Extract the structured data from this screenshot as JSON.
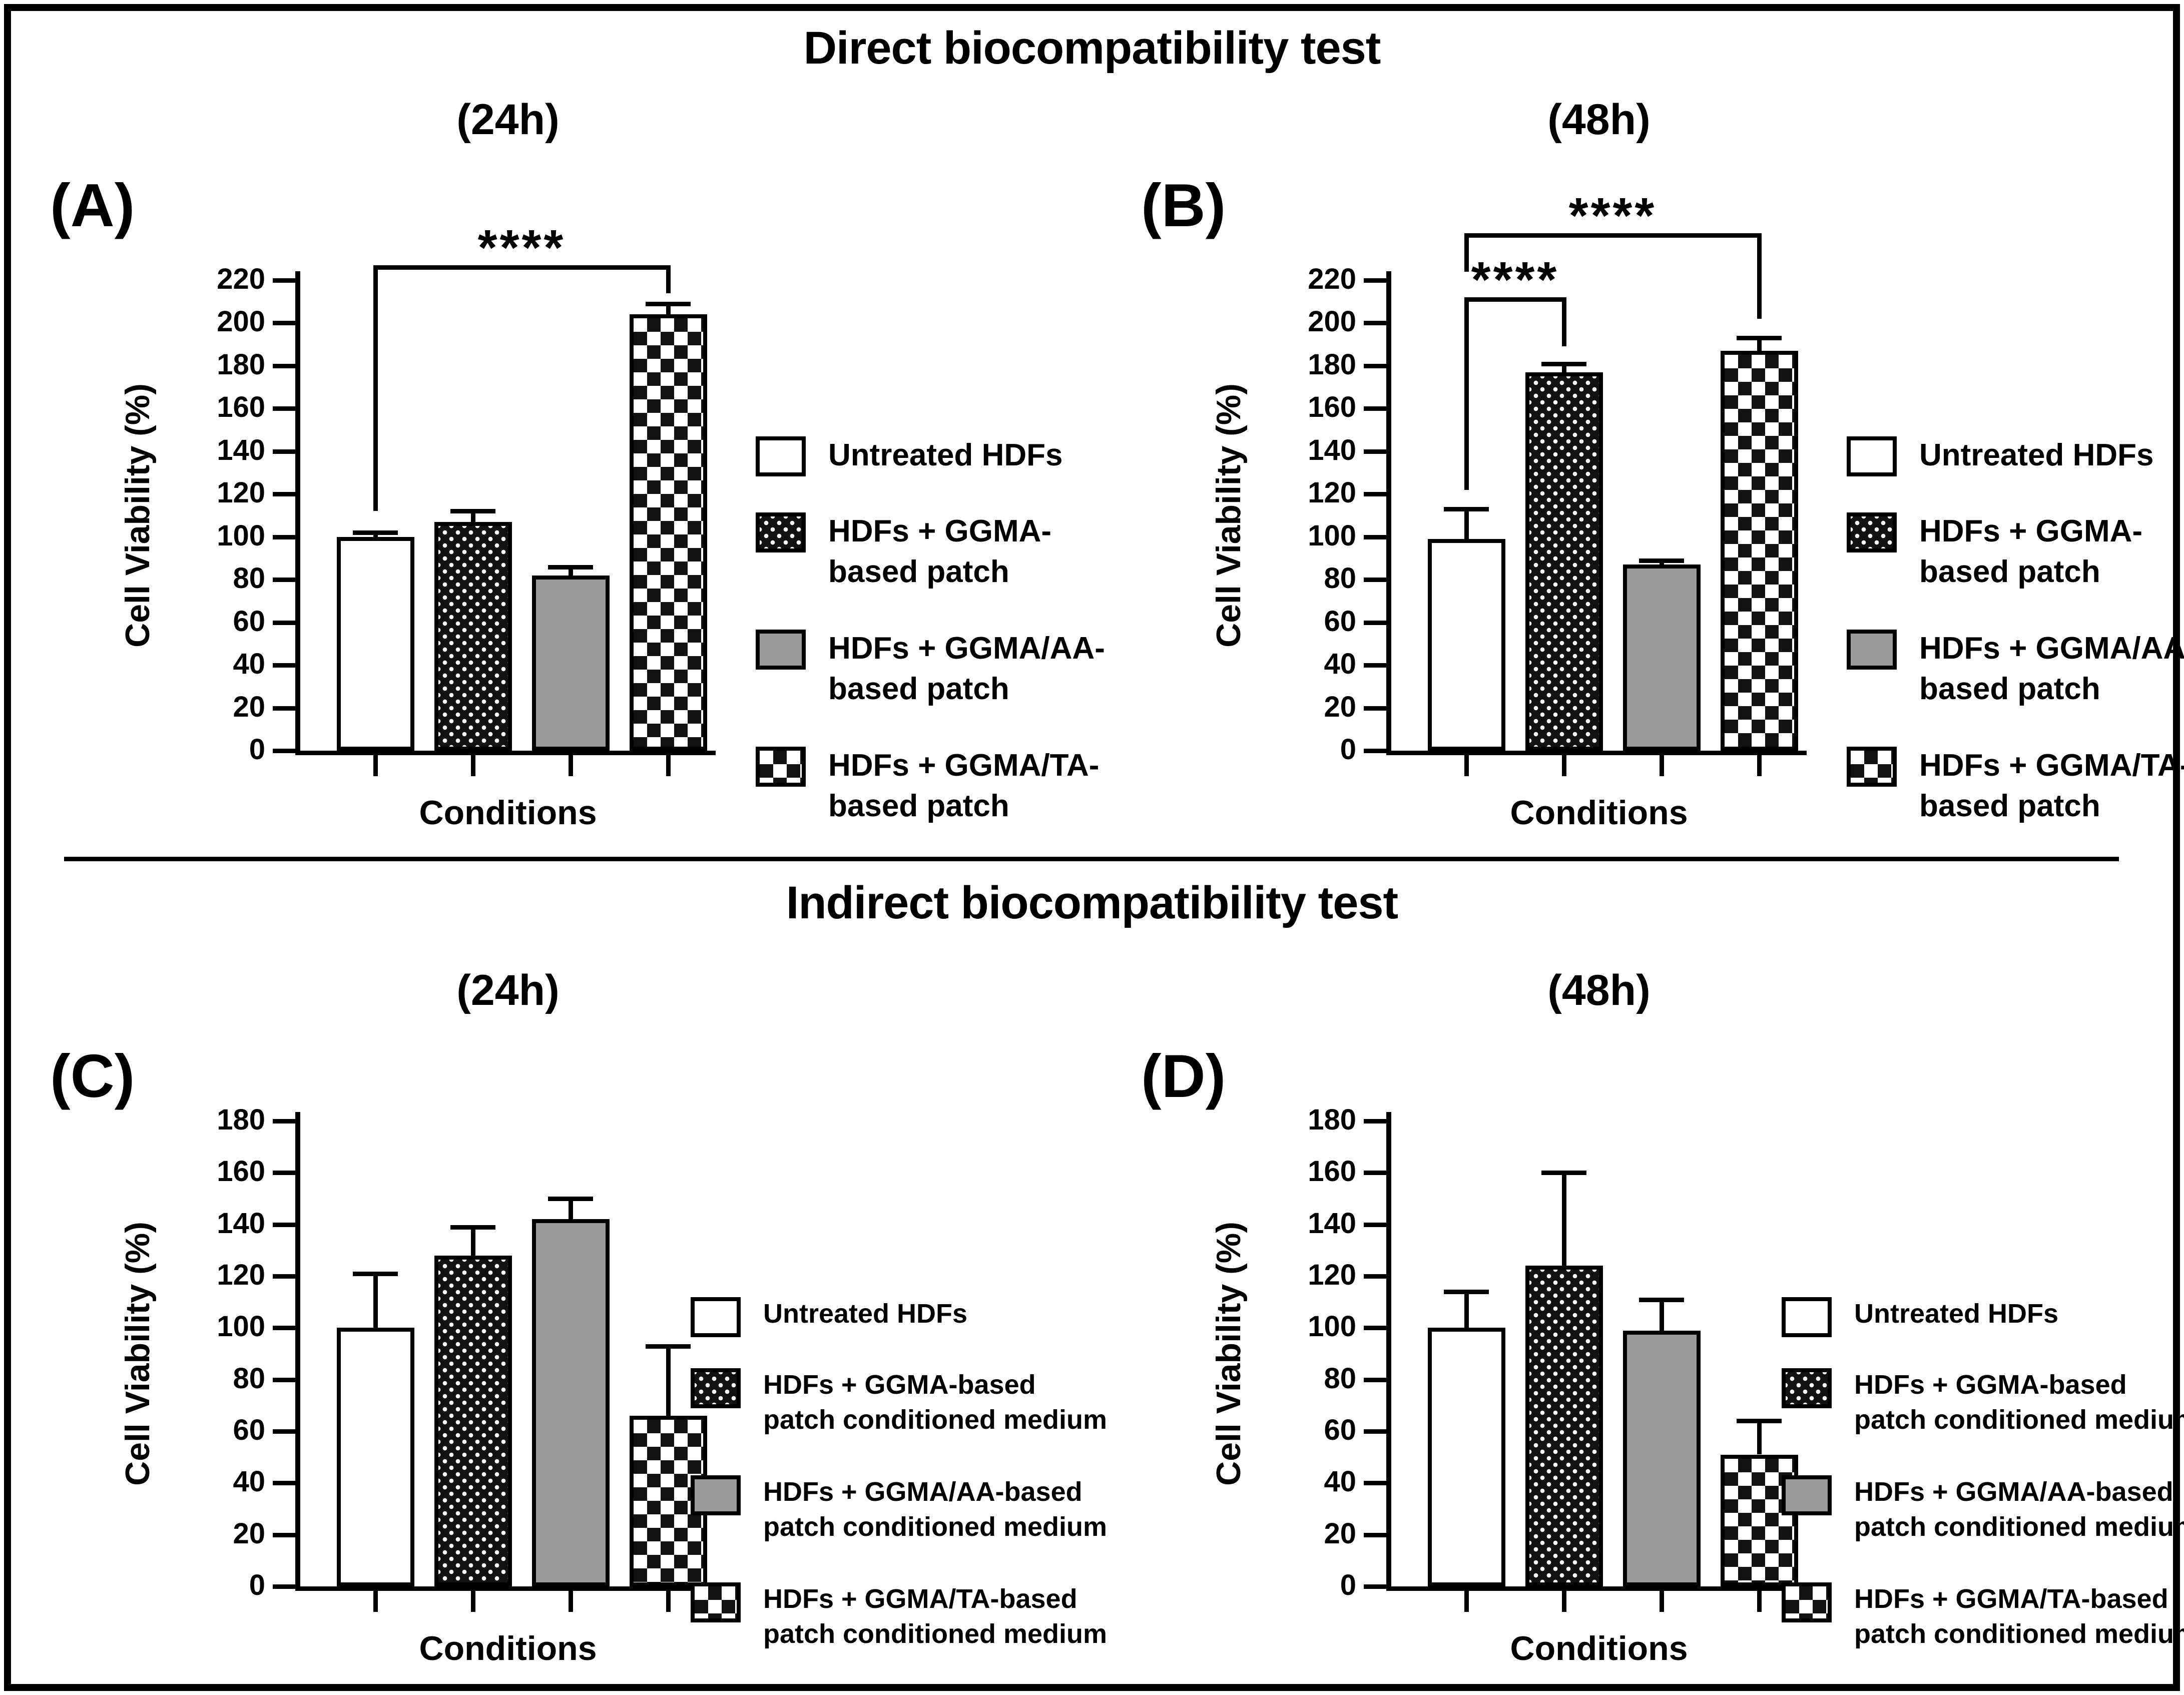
{
  "figure": {
    "background": "#ffffff",
    "frame_color": "#000000",
    "accent_gray": "#9a9a9a",
    "sections": [
      {
        "title": "Direct biocompatibility test",
        "panels": [
          "A",
          "B"
        ]
      },
      {
        "title": "Indirect biocompatibility test",
        "panels": [
          "C",
          "D"
        ]
      }
    ]
  },
  "chart_data": [
    {
      "panel": "A",
      "panel_label": "(A)",
      "section": "Direct biocompatibility test",
      "title": "(24h)",
      "type": "bar",
      "xlabel": "Conditions",
      "ylabel": "Cell Viability (%)",
      "ylim": [
        0,
        220
      ],
      "yticks": [
        0,
        20,
        40,
        60,
        80,
        100,
        120,
        140,
        160,
        180,
        200,
        220
      ],
      "grid": false,
      "legend_position": "right",
      "categories": [
        "Untreated HDFs",
        "HDFs + GGMA-based patch",
        "HDFs + GGMA/AA-based patch",
        "HDFs + GGMA/TA-based patch"
      ],
      "values": [
        100,
        107,
        82,
        204
      ],
      "errors": [
        2,
        5,
        4,
        5
      ],
      "bar_styles": [
        "white",
        "dark-dots",
        "gray",
        "checkerboard"
      ],
      "significance": [
        {
          "from": 0,
          "to": 3,
          "label": "****",
          "top_value": 227,
          "left_drop_value": 112,
          "right_drop_value": 214
        }
      ],
      "legend": [
        {
          "style": "white",
          "lines": [
            "Untreated HDFs"
          ]
        },
        {
          "style": "dark-dots",
          "lines": [
            "HDFs + GGMA-",
            "based patch"
          ]
        },
        {
          "style": "gray",
          "lines": [
            "HDFs + GGMA/AA-",
            "based patch"
          ]
        },
        {
          "style": "checkerboard",
          "lines": [
            "HDFs + GGMA/TA-",
            "based patch"
          ]
        }
      ]
    },
    {
      "panel": "B",
      "panel_label": "(B)",
      "section": "Direct biocompatibility test",
      "title": "(48h)",
      "type": "bar",
      "xlabel": "Conditions",
      "ylabel": "Cell Viability (%)",
      "ylim": [
        0,
        220
      ],
      "yticks": [
        0,
        20,
        40,
        60,
        80,
        100,
        120,
        140,
        160,
        180,
        200,
        220
      ],
      "grid": false,
      "legend_position": "right",
      "categories": [
        "Untreated HDFs",
        "HDFs + GGMA-based patch",
        "HDFs + GGMA/AA-based patch",
        "HDFs + GGMA/TA-based patch"
      ],
      "values": [
        99,
        177,
        87,
        187
      ],
      "errors": [
        14,
        4,
        2,
        6
      ],
      "bar_styles": [
        "white",
        "dark-dots",
        "gray",
        "checkerboard"
      ],
      "significance": [
        {
          "from": 0,
          "to": 1,
          "label": "****",
          "top_value": 212,
          "left_drop_value": 122,
          "right_drop_value": 189
        },
        {
          "from": 0,
          "to": 3,
          "label": "****",
          "top_value": 242,
          "left_drop_value": 224,
          "right_drop_value": 202
        }
      ],
      "legend": [
        {
          "style": "white",
          "lines": [
            "Untreated HDFs"
          ]
        },
        {
          "style": "dark-dots",
          "lines": [
            "HDFs + GGMA-",
            "based patch"
          ]
        },
        {
          "style": "gray",
          "lines": [
            "HDFs + GGMA/AA-",
            "based patch"
          ]
        },
        {
          "style": "checkerboard",
          "lines": [
            "HDFs + GGMA/TA-",
            "based patch"
          ]
        }
      ]
    },
    {
      "panel": "C",
      "panel_label": "(C)",
      "section": "Indirect biocompatibility test",
      "title": "(24h)",
      "type": "bar",
      "xlabel": "Conditions",
      "ylabel": "Cell Viability (%)",
      "ylim": [
        0,
        180
      ],
      "yticks": [
        0,
        20,
        40,
        60,
        80,
        100,
        120,
        140,
        160,
        180
      ],
      "grid": false,
      "legend_position": "right",
      "categories": [
        "Untreated HDFs",
        "HDFs + GGMA-based patch conditioned medium",
        "HDFs + GGMA/AA-based patch conditioned medium",
        "HDFs + GGMA/TA-based patch conditioned medium"
      ],
      "values": [
        100,
        128,
        142,
        66
      ],
      "errors": [
        21,
        11,
        8,
        27
      ],
      "bar_styles": [
        "white",
        "dark-dots",
        "gray",
        "checkerboard"
      ],
      "significance": [],
      "legend": [
        {
          "style": "white",
          "lines": [
            "Untreated HDFs"
          ]
        },
        {
          "style": "dark-dots",
          "lines": [
            "HDFs + GGMA-based",
            "patch conditioned medium"
          ]
        },
        {
          "style": "gray",
          "lines": [
            "HDFs + GGMA/AA-based",
            "patch conditioned medium"
          ]
        },
        {
          "style": "checkerboard",
          "lines": [
            "HDFs + GGMA/TA-based",
            "patch conditioned medium"
          ]
        }
      ]
    },
    {
      "panel": "D",
      "panel_label": "(D)",
      "section": "Indirect biocompatibility test",
      "title": "(48h)",
      "type": "bar",
      "xlabel": "Conditions",
      "ylabel": "Cell Viability (%)",
      "ylim": [
        0,
        180
      ],
      "yticks": [
        0,
        20,
        40,
        60,
        80,
        100,
        120,
        140,
        160,
        180
      ],
      "grid": false,
      "legend_position": "right",
      "categories": [
        "Untreated HDFs",
        "HDFs + GGMA-based patch conditioned medium",
        "HDFs + GGMA/AA-based patch conditioned medium",
        "HDFs + GGMA/TA-based patch conditioned medium"
      ],
      "values": [
        100,
        124,
        99,
        51
      ],
      "errors": [
        14,
        36,
        12,
        13
      ],
      "bar_styles": [
        "white",
        "dark-dots",
        "gray",
        "checkerboard"
      ],
      "significance": [],
      "legend": [
        {
          "style": "white",
          "lines": [
            "Untreated HDFs"
          ]
        },
        {
          "style": "dark-dots",
          "lines": [
            "HDFs + GGMA-based",
            "patch conditioned medium"
          ]
        },
        {
          "style": "gray",
          "lines": [
            "HDFs + GGMA/AA-based",
            "patch conditioned medium"
          ]
        },
        {
          "style": "checkerboard",
          "lines": [
            "HDFs + GGMA/TA-based",
            "patch conditioned medium"
          ]
        }
      ]
    }
  ]
}
